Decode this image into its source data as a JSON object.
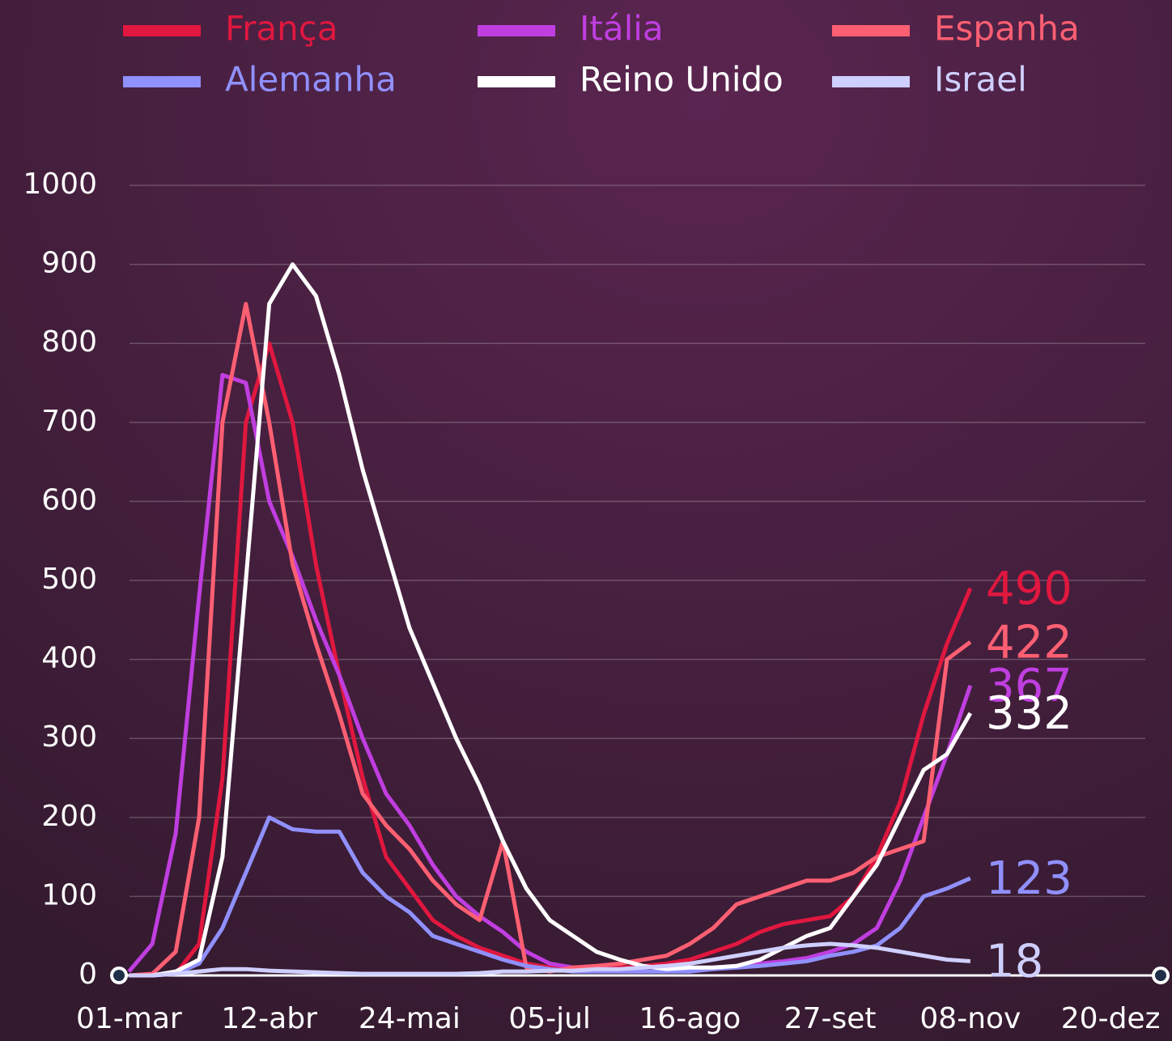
{
  "chart_data": {
    "type": "line",
    "x": [
      0,
      7,
      14,
      21,
      28,
      35,
      42,
      49,
      56,
      63,
      70,
      77,
      84,
      91,
      98,
      105,
      112,
      119,
      126,
      133,
      140,
      147,
      154,
      161,
      168,
      175,
      182,
      189,
      196,
      203,
      210,
      217,
      224,
      231,
      238,
      245,
      252
    ],
    "series": [
      {
        "name": "França",
        "color": "#e0173f",
        "values": [
          0,
          0,
          2,
          40,
          250,
          700,
          800,
          700,
          520,
          380,
          250,
          150,
          110,
          70,
          50,
          35,
          25,
          15,
          10,
          8,
          8,
          10,
          12,
          15,
          20,
          30,
          40,
          55,
          65,
          70,
          75,
          100,
          150,
          220,
          330,
          420,
          490
        ]
      },
      {
        "name": "Itália",
        "color": "#c03ee0",
        "values": [
          5,
          40,
          180,
          480,
          760,
          750,
          600,
          530,
          450,
          380,
          300,
          230,
          190,
          140,
          100,
          75,
          55,
          30,
          15,
          10,
          8,
          5,
          5,
          5,
          8,
          10,
          12,
          15,
          18,
          22,
          30,
          40,
          60,
          120,
          200,
          280,
          367
        ]
      },
      {
        "name": "Espanha",
        "color": "#ff5f72",
        "values": [
          0,
          2,
          30,
          200,
          700,
          850,
          700,
          520,
          420,
          330,
          230,
          190,
          160,
          120,
          90,
          70,
          170,
          10,
          5,
          10,
          12,
          15,
          20,
          25,
          40,
          60,
          90,
          100,
          110,
          120,
          120,
          130,
          150,
          160,
          170,
          400,
          422
        ]
      },
      {
        "name": "Alemanha",
        "color": "#9090ff",
        "values": [
          0,
          0,
          2,
          15,
          60,
          130,
          200,
          185,
          182,
          182,
          130,
          100,
          80,
          50,
          40,
          30,
          20,
          12,
          8,
          5,
          5,
          5,
          5,
          5,
          5,
          8,
          10,
          12,
          15,
          18,
          25,
          30,
          38,
          60,
          100,
          110,
          123
        ]
      },
      {
        "name": "Reino Unido",
        "color": "#ffffff",
        "values": [
          0,
          0,
          5,
          20,
          150,
          500,
          850,
          900,
          860,
          760,
          640,
          540,
          440,
          370,
          300,
          240,
          170,
          110,
          70,
          50,
          30,
          20,
          12,
          8,
          10,
          10,
          12,
          20,
          35,
          50,
          60,
          100,
          140,
          200,
          260,
          280,
          332
        ]
      },
      {
        "name": "Israel",
        "color": "#cfcfff",
        "values": [
          0,
          0,
          2,
          5,
          8,
          8,
          6,
          5,
          4,
          3,
          2,
          2,
          2,
          2,
          2,
          3,
          5,
          5,
          6,
          6,
          8,
          8,
          10,
          12,
          15,
          20,
          25,
          30,
          35,
          38,
          40,
          38,
          35,
          30,
          25,
          20,
          18
        ]
      }
    ],
    "xlim": [
      -3,
      309
    ],
    "xticks": [
      {
        "value": 0,
        "label": "01-mar"
      },
      {
        "value": 42,
        "label": "12-abr"
      },
      {
        "value": 84,
        "label": "24-mai"
      },
      {
        "value": 126,
        "label": "05-jul"
      },
      {
        "value": 168,
        "label": "16-ago"
      },
      {
        "value": 210,
        "label": "27-set"
      },
      {
        "value": 252,
        "label": "08-nov"
      },
      {
        "value": 294,
        "label": "20-dez"
      }
    ],
    "ylim": [
      0,
      1000
    ],
    "yticks": [
      0,
      100,
      200,
      300,
      400,
      500,
      600,
      700,
      800,
      900,
      1000
    ],
    "grid": true
  }
}
